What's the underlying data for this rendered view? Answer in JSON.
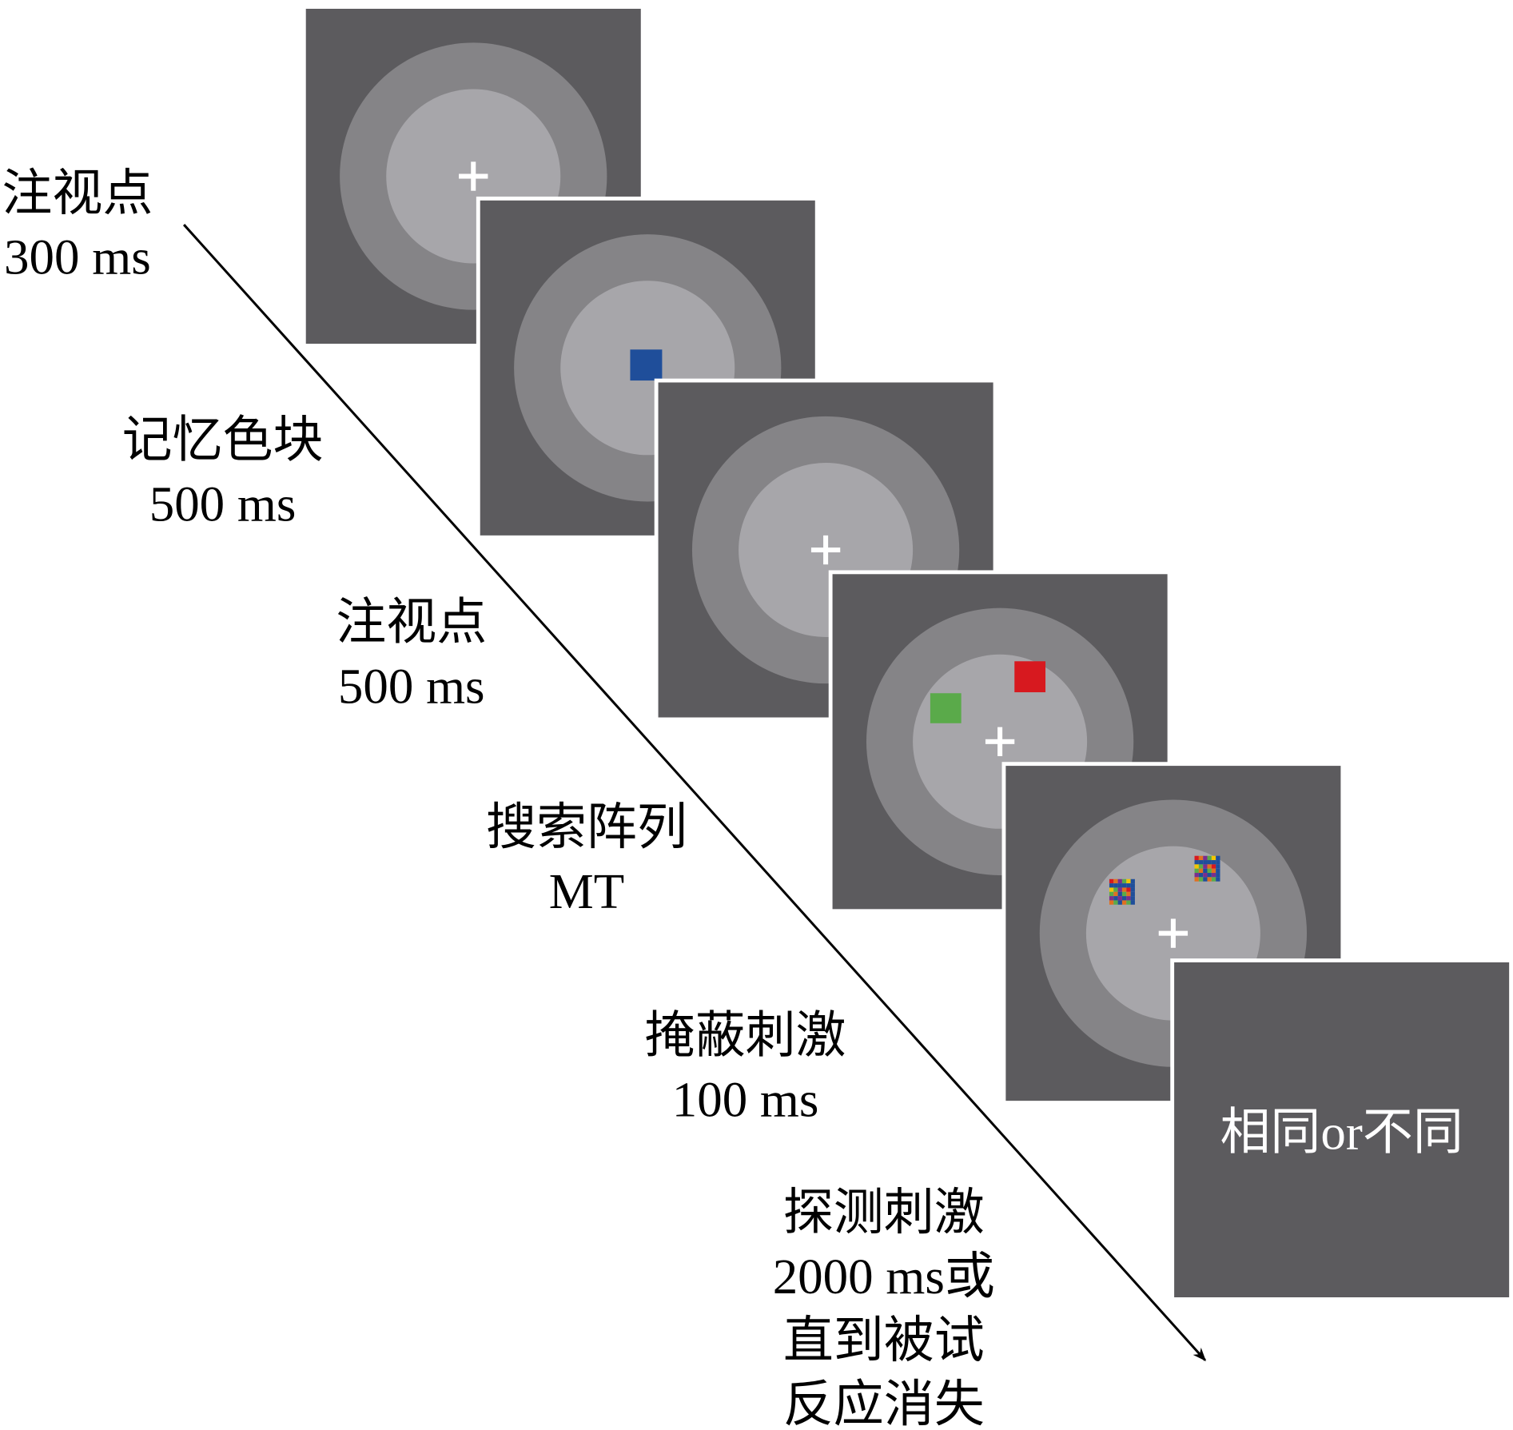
{
  "steps": [
    {
      "lines": [
        "注视点",
        "300 ms"
      ]
    },
    {
      "lines": [
        "记忆色块",
        "500 ms"
      ]
    },
    {
      "lines": [
        "注视点",
        "500 ms"
      ]
    },
    {
      "lines": [
        "搜索阵列",
        "MT"
      ]
    },
    {
      "lines": [
        "掩蔽刺激",
        "100 ms"
      ]
    },
    {
      "lines": [
        "探测刺激",
        "2000 ms或",
        "直到被试",
        "反应消失"
      ]
    }
  ],
  "response_screen": "相同or不同"
}
